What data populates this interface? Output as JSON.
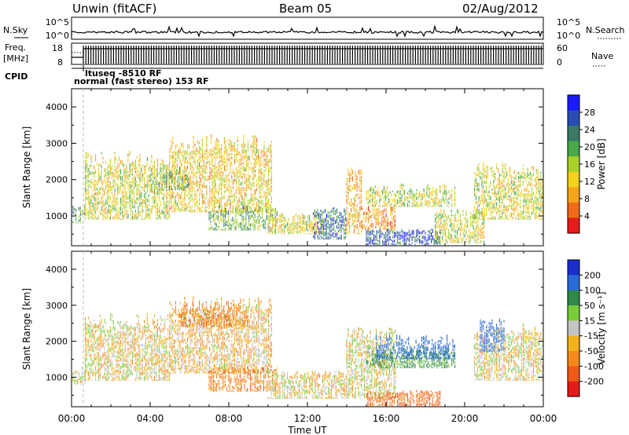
{
  "header": {
    "station": "Unwin (fitACF)",
    "beam": "Beam 05",
    "date": "02/Aug/2012"
  },
  "top_strip": {
    "nsky_label": "N.Sky",
    "nsky_ticks": [
      "10^5",
      "10^0"
    ],
    "nsearch_label": "N.Search",
    "freq_label": "Freq.",
    "freq_unit": "[MHz]",
    "freq_ticks": [
      "18",
      "8"
    ],
    "nave_label": "Nave",
    "nave_ticks": [
      "60",
      "0"
    ],
    "cpid_label": "CPID",
    "cpid_lines": [
      "ltuseq -8510 RF",
      "normal (fast stereo) 153 RF"
    ]
  },
  "chart_data": [
    {
      "type": "heatmap",
      "name": "power",
      "ylabel": "Slant Range [km]",
      "ylim": [
        180,
        4500
      ],
      "yticks": [
        1000,
        2000,
        3000,
        4000
      ],
      "xlim": [
        0,
        24
      ],
      "colorbar": {
        "label": "Power [dB]",
        "ticks": [
          4,
          8,
          12,
          16,
          20,
          24,
          28
        ],
        "range": [
          0,
          32
        ],
        "colors": [
          "#1a1aff",
          "#2a4db3",
          "#3a7a66",
          "#4aa84a",
          "#a8d22a",
          "#f2d21a",
          "#f5a51a",
          "#ef6b1a",
          "#e61a1a"
        ]
      },
      "regions": [
        {
          "t": [
            0.0,
            0.7
          ],
          "r": [
            800,
            1300
          ],
          "v": 20
        },
        {
          "t": [
            0.7,
            5.0
          ],
          "r": [
            900,
            2800
          ],
          "v": 14
        },
        {
          "t": [
            5.0,
            10.2
          ],
          "r": [
            1100,
            3250
          ],
          "v": 12
        },
        {
          "t": [
            4.0,
            6.0
          ],
          "r": [
            1700,
            2400
          ],
          "v": 19
        },
        {
          "t": [
            7.0,
            10.5
          ],
          "r": [
            600,
            1300
          ],
          "v": 19
        },
        {
          "t": [
            10.0,
            12.8
          ],
          "r": [
            500,
            1100
          ],
          "v": 13
        },
        {
          "t": [
            12.3,
            14.0
          ],
          "r": [
            350,
            1250
          ],
          "v": 25
        },
        {
          "t": [
            14.0,
            14.8
          ],
          "r": [
            500,
            2400
          ],
          "v": 10
        },
        {
          "t": [
            14.8,
            16.5
          ],
          "r": [
            600,
            1300
          ],
          "v": 8
        },
        {
          "t": [
            15.0,
            19.5
          ],
          "r": [
            1250,
            1900
          ],
          "v": 15
        },
        {
          "t": [
            15.0,
            18.8
          ],
          "r": [
            200,
            650
          ],
          "v": 26
        },
        {
          "t": [
            18.5,
            21.0
          ],
          "r": [
            250,
            1200
          ],
          "v": 14
        },
        {
          "t": [
            20.5,
            24.0
          ],
          "r": [
            900,
            2500
          ],
          "v": 14
        }
      ]
    },
    {
      "type": "heatmap",
      "name": "velocity",
      "ylabel": "Slant Range [km]",
      "ylim": [
        180,
        4500
      ],
      "yticks": [
        1000,
        2000,
        3000,
        4000
      ],
      "xlabel": "Time UT",
      "xlim": [
        0,
        24
      ],
      "xticks": [
        "00:00",
        "04:00",
        "08:00",
        "12:00",
        "16:00",
        "20:00",
        "00:00"
      ],
      "colorbar": {
        "label": "Velocity [m s⁻¹]",
        "ticks": [
          "200",
          "100",
          "50",
          "15",
          "-15",
          "-50",
          "-100",
          "-200"
        ],
        "colors": [
          "#1a2ecc",
          "#2a6ad6",
          "#2f8a4a",
          "#7acc3a",
          "#c4c4c4",
          "#f2b21a",
          "#f58a1a",
          "#ef5a1a",
          "#e61a1a"
        ]
      },
      "regions": [
        {
          "t": [
            0.0,
            0.7
          ],
          "r": [
            800,
            1300
          ],
          "v": 0
        },
        {
          "t": [
            0.7,
            5.0
          ],
          "r": [
            900,
            2800
          ],
          "v": 0
        },
        {
          "t": [
            5.0,
            10.2
          ],
          "r": [
            1100,
            3250
          ],
          "v": -10
        },
        {
          "t": [
            5.5,
            9.0
          ],
          "r": [
            2400,
            3200
          ],
          "v": -40
        },
        {
          "t": [
            7.0,
            10.5
          ],
          "r": [
            600,
            1300
          ],
          "v": -40
        },
        {
          "t": [
            10.0,
            14.0
          ],
          "r": [
            400,
            1200
          ],
          "v": 0
        },
        {
          "t": [
            14.0,
            16.5
          ],
          "r": [
            400,
            2400
          ],
          "v": 5
        },
        {
          "t": [
            15.0,
            19.5
          ],
          "r": [
            1250,
            1900
          ],
          "v": 60
        },
        {
          "t": [
            15.5,
            19.5
          ],
          "r": [
            1500,
            2200
          ],
          "v": 160
        },
        {
          "t": [
            15.0,
            18.8
          ],
          "r": [
            200,
            650
          ],
          "v": -60
        },
        {
          "t": [
            20.5,
            24.0
          ],
          "r": [
            900,
            2500
          ],
          "v": 0
        },
        {
          "t": [
            20.8,
            22.0
          ],
          "r": [
            1700,
            2700
          ],
          "v": 150
        }
      ]
    }
  ]
}
